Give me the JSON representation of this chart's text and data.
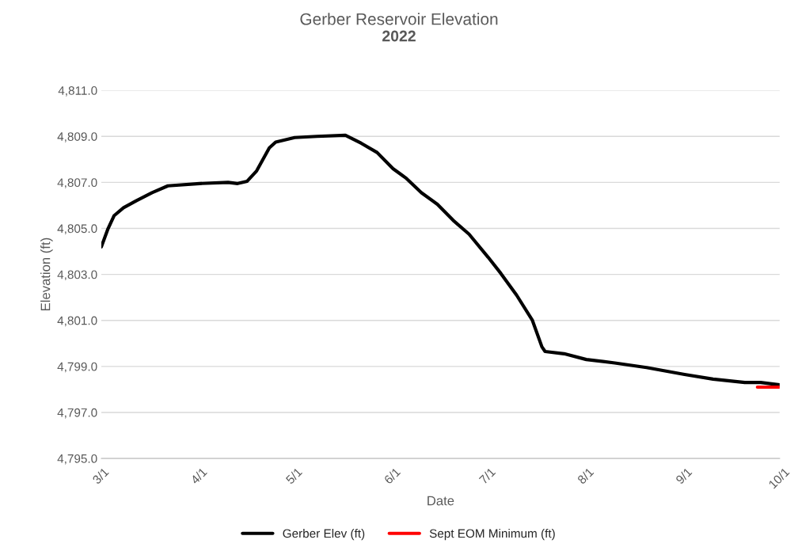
{
  "chart_data": {
    "type": "line",
    "title": "Gerber Reservoir Elevation",
    "subtitle": "2022",
    "xlabel": "Date",
    "ylabel": "Elevation (ft)",
    "xlim": [
      "2022-03-01",
      "2022-10-01"
    ],
    "xticks": [
      {
        "value": "2022-03-01",
        "label": "3/1"
      },
      {
        "value": "2022-04-01",
        "label": "4/1"
      },
      {
        "value": "2022-05-01",
        "label": "5/1"
      },
      {
        "value": "2022-06-01",
        "label": "6/1"
      },
      {
        "value": "2022-07-01",
        "label": "7/1"
      },
      {
        "value": "2022-08-01",
        "label": "8/1"
      },
      {
        "value": "2022-09-01",
        "label": "9/1"
      },
      {
        "value": "2022-10-01",
        "label": "10/1"
      }
    ],
    "ylim": [
      4795,
      4811
    ],
    "yticks": [
      {
        "value": 4795,
        "label": "4,795.0"
      },
      {
        "value": 4797,
        "label": "4,797.0"
      },
      {
        "value": 4799,
        "label": "4,799.0"
      },
      {
        "value": 4801,
        "label": "4,801.0"
      },
      {
        "value": 4803,
        "label": "4,803.0"
      },
      {
        "value": 4805,
        "label": "4,805.0"
      },
      {
        "value": 4807,
        "label": "4,807.0"
      },
      {
        "value": 4809,
        "label": "4,809.0"
      },
      {
        "value": 4811,
        "label": "4,811.0"
      }
    ],
    "grid": "y",
    "legend": "bottom",
    "marker": "none",
    "series": [
      {
        "name": "Gerber Elev (ft)",
        "color": "#000000",
        "x": [
          "2022-03-01",
          "2022-03-03",
          "2022-03-05",
          "2022-03-08",
          "2022-03-12",
          "2022-03-17",
          "2022-03-22",
          "2022-04-01",
          "2022-04-10",
          "2022-04-13",
          "2022-04-16",
          "2022-04-19",
          "2022-04-21",
          "2022-04-23",
          "2022-04-25",
          "2022-05-01",
          "2022-05-08",
          "2022-05-17",
          "2022-05-22",
          "2022-05-27",
          "2022-06-01",
          "2022-06-05",
          "2022-06-10",
          "2022-06-15",
          "2022-06-20",
          "2022-06-25",
          "2022-07-01",
          "2022-07-05",
          "2022-07-10",
          "2022-07-15",
          "2022-07-18",
          "2022-07-19",
          "2022-07-25",
          "2022-08-01",
          "2022-08-10",
          "2022-08-20",
          "2022-09-01",
          "2022-09-10",
          "2022-09-20",
          "2022-09-25",
          "2022-10-01"
        ],
        "values": [
          4804.2,
          4804.95,
          4805.55,
          4805.9,
          4806.2,
          4806.55,
          4806.85,
          4806.95,
          4807.0,
          4806.95,
          4807.05,
          4807.5,
          4808.0,
          4808.5,
          4808.75,
          4808.95,
          4809.0,
          4809.05,
          4808.7,
          4808.3,
          4807.6,
          4807.2,
          4806.55,
          4806.05,
          4805.35,
          4804.75,
          4803.75,
          4803.05,
          4802.1,
          4801.0,
          4799.85,
          4799.65,
          4799.55,
          4799.3,
          4799.15,
          4798.95,
          4798.65,
          4798.45,
          4798.3,
          4798.3,
          4798.2
        ]
      },
      {
        "name": "Sept EOM Minimum (ft)",
        "color": "#ff0000",
        "x": [
          "2022-09-24",
          "2022-10-01"
        ],
        "values": [
          4798.1,
          4798.1
        ]
      }
    ]
  }
}
